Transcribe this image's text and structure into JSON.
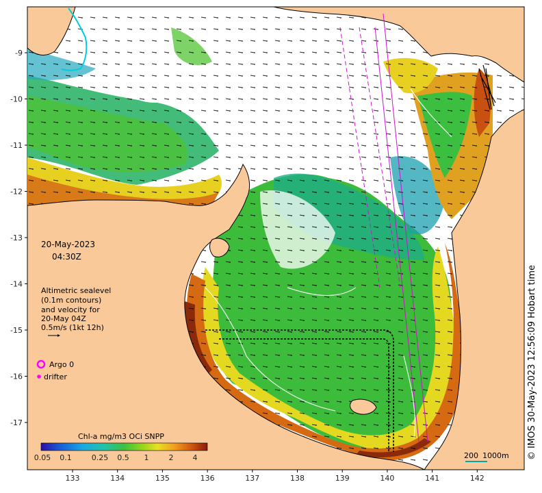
{
  "map": {
    "date_line1": "20-May-2023",
    "date_line2": "04:30Z",
    "altimetry_lines": [
      "Altimetric sealevel",
      "(0.1m contours)",
      "and velocity for",
      "20-May 04Z",
      "0.5m/s (1kt 12h)"
    ],
    "legend": {
      "argo_label": "Argo 0",
      "drifter_label": "drifter",
      "argo_color": "#ff00ff",
      "drifter_color": "#ff00ff"
    },
    "colorbar": {
      "title": "Chl-a mg/m3 OCi SNPP",
      "ticks": [
        "0.05",
        "0.1",
        "0.25",
        "0.5",
        "1",
        "2",
        "4"
      ]
    },
    "scale_bar": {
      "label1": "200",
      "label2": "1000m"
    },
    "credit": "© IMOS 30-May-2023 12:56:09 Hobart time",
    "lon_ticks": [
      "133",
      "134",
      "135",
      "136",
      "137",
      "138",
      "139",
      "140",
      "141",
      "142"
    ],
    "lat_ticks": [
      "-9",
      "-10",
      "-11",
      "-12",
      "-13",
      "-14",
      "-15",
      "-16",
      "-17"
    ],
    "colors": {
      "land": "#fac99a",
      "ocean_nodata": "#ffffff",
      "coast": "#000000"
    }
  }
}
